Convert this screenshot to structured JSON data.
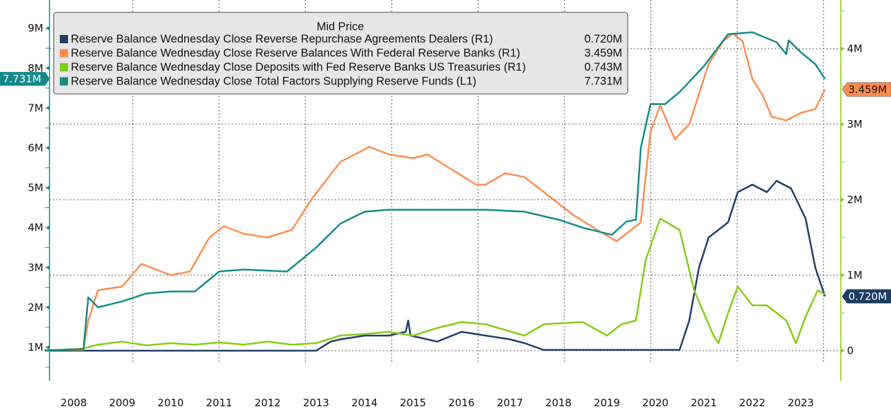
{
  "chart_data": {
    "type": "line",
    "legend": {
      "title": "Mid Price",
      "placement": "top-left",
      "entries": [
        {
          "name": "Reserve Balance Wednesday Close Reverse Repurchase Agreements Dealers  (R1)",
          "value": "0.720M",
          "color": "#1e3d66"
        },
        {
          "name": "Reserve Balance Wednesday Close Reserve Balances With Federal Reserve Banks  (R1)",
          "value": "3.459M",
          "color": "#ff8c4d"
        },
        {
          "name": "Reserve Balance Wednesday Close Deposits with Fed Reserve Banks US Treasuries  (R1)",
          "value": "0.743M",
          "color": "#84cc16"
        },
        {
          "name": "Reserve Balance Wednesday Close Total Factors Supplying Reserve Funds  (L1)",
          "value": "7.731M",
          "color": "#138a8a"
        }
      ]
    },
    "x_ticks": [
      "2008",
      "2009",
      "2010",
      "2011",
      "2012",
      "2013",
      "2014",
      "2015",
      "2016",
      "2017",
      "2018",
      "2019",
      "2020",
      "2021",
      "2022",
      "2023"
    ],
    "xlim": [
      2008,
      2024
    ],
    "left_axis": {
      "ticks": [
        "1M",
        "2M",
        "3M",
        "4M",
        "5M",
        "6M",
        "7M",
        "8M",
        "9M"
      ],
      "ylim_millions": [
        0.4,
        9.7
      ],
      "color": "#138a8a"
    },
    "right_axis": {
      "ticks": [
        "0",
        "1M",
        "2M",
        "3M",
        "4M"
      ],
      "ylim_millions": [
        -0.4,
        4.6
      ],
      "color": "#84cc16"
    },
    "grid": true,
    "value_tags": [
      {
        "series": 3,
        "axis": "left",
        "label": "7.731M"
      },
      {
        "series": 1,
        "axis": "right",
        "label": "3.459M"
      },
      {
        "series": 0,
        "axis": "right",
        "label": "0.720M"
      }
    ],
    "series": [
      {
        "name": "Reserve Balance Wednesday Close Reverse Repurchase Agreements Dealers  (R1)",
        "axis": "right",
        "color": "#1e3d66",
        "x": [
          2007.9,
          2013.5,
          2013.8,
          2014.0,
          2014.5,
          2015.0,
          2015.35,
          2015.4,
          2015.45,
          2016.0,
          2016.5,
          2017.0,
          2017.5,
          2017.8,
          2018.2,
          2021.0,
          2021.2,
          2021.4,
          2021.6,
          2021.8,
          2022.0,
          2022.2,
          2022.5,
          2022.8,
          2023.0,
          2023.3,
          2023.6,
          2023.8,
          2024.0
        ],
        "y": [
          0.0,
          0.0,
          0.12,
          0.15,
          0.2,
          0.2,
          0.25,
          0.4,
          0.2,
          0.12,
          0.25,
          0.2,
          0.15,
          0.1,
          0.01,
          0.01,
          0.4,
          1.1,
          1.5,
          1.6,
          1.7,
          2.1,
          2.2,
          2.1,
          2.25,
          2.15,
          1.75,
          1.1,
          0.72
        ]
      },
      {
        "name": "Reserve Balance Wednesday Close Reserve Balances With Federal Reserve Banks  (R1)",
        "axis": "right",
        "color": "#ff8c4d",
        "x": [
          2007.9,
          2008.7,
          2008.8,
          2009.0,
          2009.5,
          2009.9,
          2010.5,
          2010.9,
          2011.3,
          2011.6,
          2012.0,
          2012.5,
          2013.0,
          2013.4,
          2014.0,
          2014.6,
          2015.0,
          2015.5,
          2015.8,
          2016.3,
          2016.8,
          2017.0,
          2017.4,
          2017.8,
          2018.3,
          2018.8,
          2019.3,
          2019.7,
          2020.0,
          2020.2,
          2020.4,
          2020.6,
          2020.9,
          2021.2,
          2021.6,
          2021.9,
          2022.1,
          2022.3,
          2022.5,
          2022.7,
          2022.9,
          2023.2,
          2023.5,
          2023.8,
          2024.0
        ],
        "y": [
          0.01,
          0.01,
          0.4,
          0.8,
          0.85,
          1.15,
          1.0,
          1.05,
          1.5,
          1.65,
          1.55,
          1.5,
          1.6,
          2.0,
          2.5,
          2.7,
          2.6,
          2.55,
          2.6,
          2.4,
          2.2,
          2.2,
          2.35,
          2.3,
          2.05,
          1.8,
          1.6,
          1.45,
          1.6,
          1.7,
          2.9,
          3.25,
          2.8,
          3.0,
          3.8,
          4.1,
          4.2,
          4.1,
          3.6,
          3.4,
          3.1,
          3.05,
          3.15,
          3.2,
          3.46
        ]
      },
      {
        "name": "Reserve Balance Wednesday Close Deposits with Fed Reserve Banks US Treasuries  (R1)",
        "axis": "right",
        "color": "#84cc16",
        "x": [
          2007.9,
          2008.7,
          2009.0,
          2009.5,
          2010.0,
          2010.5,
          2011.0,
          2011.5,
          2012.0,
          2012.5,
          2013.0,
          2013.5,
          2014.0,
          2014.5,
          2015.0,
          2015.5,
          2016.0,
          2016.5,
          2017.0,
          2017.8,
          2018.2,
          2019.0,
          2019.5,
          2019.8,
          2020.1,
          2020.3,
          2020.6,
          2021.0,
          2021.3,
          2021.7,
          2021.8,
          2022.0,
          2022.2,
          2022.5,
          2022.8,
          2023.2,
          2023.4,
          2023.6,
          2023.85,
          2024.0
        ],
        "y": [
          0.0,
          0.03,
          0.08,
          0.12,
          0.07,
          0.1,
          0.08,
          0.11,
          0.08,
          0.12,
          0.08,
          0.1,
          0.2,
          0.22,
          0.25,
          0.2,
          0.3,
          0.38,
          0.35,
          0.2,
          0.35,
          0.38,
          0.2,
          0.35,
          0.4,
          1.2,
          1.75,
          1.6,
          0.8,
          0.2,
          0.1,
          0.5,
          0.85,
          0.6,
          0.6,
          0.4,
          0.1,
          0.45,
          0.8,
          0.743
        ]
      },
      {
        "name": "Reserve Balance Wednesday Close Total Factors Supplying Reserve Funds  (L1)",
        "axis": "left",
        "color": "#138a8a",
        "x": [
          2007.9,
          2008.7,
          2008.8,
          2009.0,
          2009.5,
          2010.0,
          2010.5,
          2011.0,
          2011.5,
          2012.0,
          2012.5,
          2012.9,
          2013.5,
          2014.0,
          2014.5,
          2015.0,
          2016.0,
          2017.0,
          2017.8,
          2018.5,
          2019.0,
          2019.6,
          2019.9,
          2020.1,
          2020.2,
          2020.4,
          2020.7,
          2021.0,
          2021.5,
          2022.0,
          2022.5,
          2023.0,
          2023.2,
          2023.25,
          2023.5,
          2023.8,
          2024.0
        ],
        "y": [
          0.92,
          0.95,
          2.25,
          2.0,
          2.15,
          2.35,
          2.4,
          2.4,
          2.9,
          2.95,
          2.92,
          2.9,
          3.5,
          4.1,
          4.4,
          4.45,
          4.45,
          4.45,
          4.4,
          4.2,
          4.0,
          3.82,
          4.15,
          4.2,
          6.0,
          7.1,
          7.1,
          7.4,
          8.05,
          8.85,
          8.9,
          8.65,
          8.35,
          8.7,
          8.4,
          8.1,
          7.731
        ]
      }
    ]
  }
}
